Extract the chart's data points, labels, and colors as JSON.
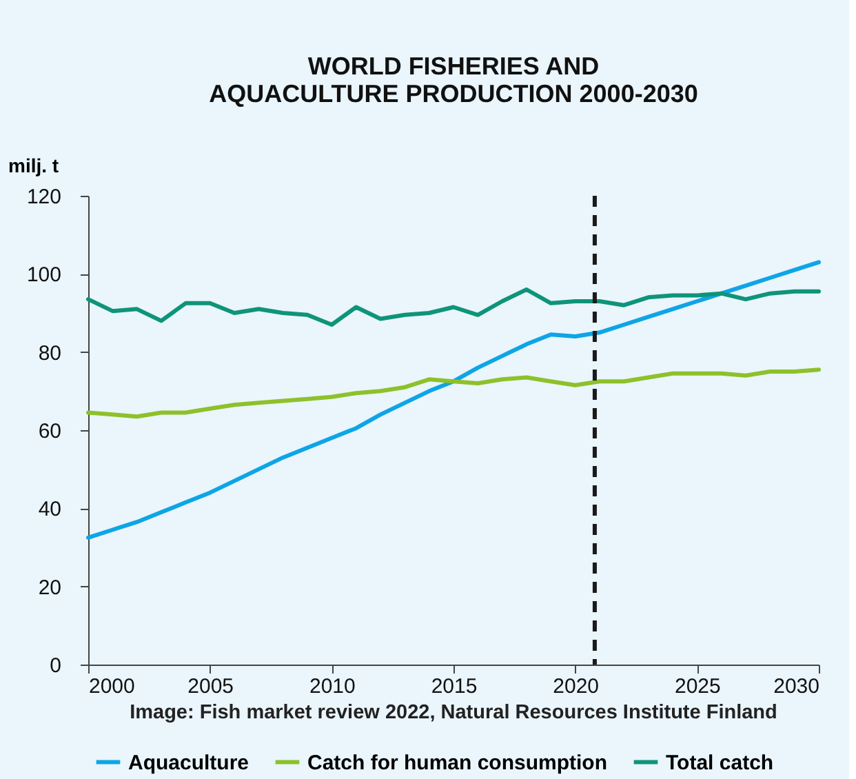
{
  "chart_data": {
    "type": "line",
    "title": [
      "WORLD FISHERIES AND",
      "AQUACULTURE PRODUCTION 2000-2030"
    ],
    "ylabel": "milj. t",
    "x": [
      2000,
      2001,
      2002,
      2003,
      2004,
      2005,
      2006,
      2007,
      2008,
      2009,
      2010,
      2011,
      2012,
      2013,
      2014,
      2015,
      2016,
      2017,
      2018,
      2019,
      2020,
      2021,
      2022,
      2023,
      2024,
      2025,
      2026,
      2027,
      2028,
      2029,
      2030
    ],
    "series": [
      {
        "name": "Aquaculture",
        "color": "#0ea5e6",
        "values": [
          32.5,
          34.5,
          36.5,
          39,
          41.5,
          44,
          47,
          50,
          53,
          55.5,
          58,
          60.5,
          64,
          67,
          70,
          72.5,
          76,
          79,
          82,
          84.5,
          84,
          85,
          87,
          89,
          91,
          93,
          95,
          97,
          99,
          101,
          103
        ]
      },
      {
        "name": "Catch for human consumption",
        "color": "#8dc12a",
        "values": [
          64.5,
          64,
          63.5,
          64.5,
          64.5,
          65.5,
          66.5,
          67,
          67.5,
          68,
          68.5,
          69.5,
          70,
          71,
          73,
          72.5,
          72,
          73,
          73.5,
          72.5,
          71.5,
          72.5,
          72.5,
          73.5,
          74.5,
          74.5,
          74.5,
          74,
          75,
          75,
          75.5
        ]
      },
      {
        "name": "Total catch",
        "color": "#0e9479",
        "values": [
          93.5,
          90.5,
          91,
          88,
          92.5,
          92.5,
          90,
          91,
          90,
          89.5,
          87,
          91.5,
          88.5,
          89.5,
          90,
          91.5,
          89.5,
          93,
          96,
          92.5,
          93,
          93,
          92,
          94,
          94.5,
          94.5,
          95,
          93.5,
          95,
          95.5,
          95.5
        ]
      }
    ],
    "xlim": [
      2000,
      2030
    ],
    "xticks": [
      2000,
      2005,
      2010,
      2015,
      2020,
      2025,
      2030
    ],
    "ylim": [
      0,
      120
    ],
    "yticks": [
      0,
      20,
      40,
      60,
      80,
      100,
      120
    ],
    "ref_lines": [
      {
        "axis": "x",
        "value": 2020.8,
        "color": "#1a1a1a",
        "line_style": "dashed"
      }
    ],
    "grid": false,
    "legend": "bottom",
    "marker": "none",
    "line_style": "solid",
    "annotations": [
      "Image: Fish market review 2022, Natural Resources Institute Finland"
    ]
  }
}
